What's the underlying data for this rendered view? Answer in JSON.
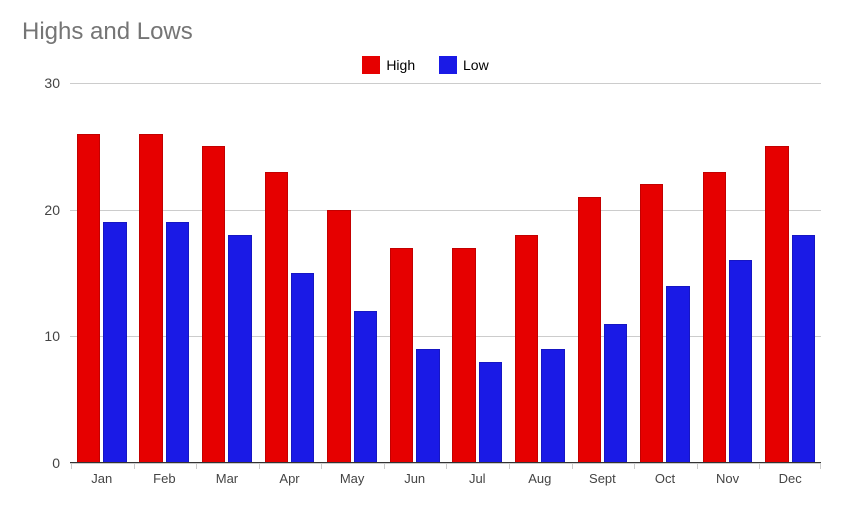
{
  "chart": {
    "type": "bar",
    "title": "Highs and Lows",
    "title_fontsize": 24,
    "title_color": "#757575",
    "background_color": "#ffffff",
    "grid_color": "#cccccc",
    "axis_color": "#333333",
    "label_color": "#444444",
    "label_fontsize": 14,
    "x_label_fontsize": 13,
    "font_family": "Arial",
    "ylim": [
      0,
      30
    ],
    "ytick_step": 10,
    "yticks": [
      0,
      10,
      20,
      30
    ],
    "categories": [
      "Jan",
      "Feb",
      "Mar",
      "Apr",
      "May",
      "Jun",
      "Jul",
      "Aug",
      "Sept",
      "Oct",
      "Nov",
      "Dec"
    ],
    "series": [
      {
        "name": "High",
        "color": "#e60000",
        "values": [
          26,
          26,
          25,
          23,
          20,
          17,
          17,
          18,
          21,
          22,
          23,
          25
        ]
      },
      {
        "name": "Low",
        "color": "#1a1ae6",
        "values": [
          19,
          19,
          18,
          15,
          12,
          9,
          8,
          9,
          11,
          14,
          16,
          18
        ]
      }
    ],
    "bar_group_width": 0.76,
    "legend_position": "top-center",
    "legend_swatch_size": 18,
    "aspect_w": 851,
    "aspect_h": 522
  }
}
